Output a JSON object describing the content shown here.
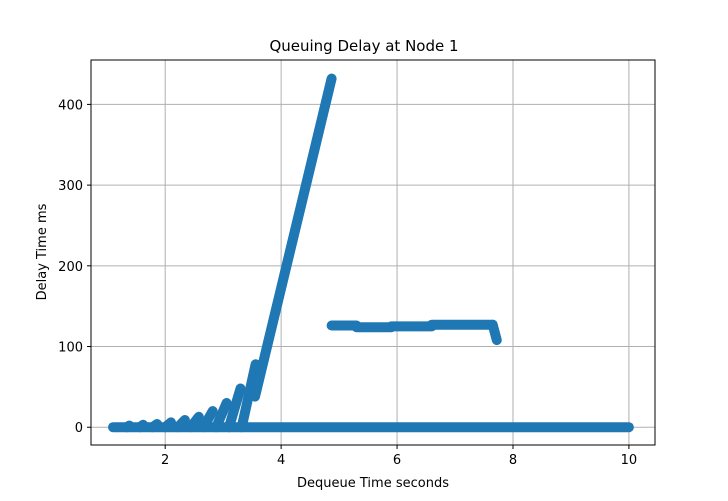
{
  "chart_data": {
    "type": "scatter",
    "title": "Queuing Delay at Node 1",
    "xlabel": "Dequeue Time seconds",
    "ylabel": "Delay Time ms",
    "xlim": [
      0.72,
      10.45
    ],
    "ylim": [
      -22,
      455
    ],
    "xticks": [
      2,
      4,
      6,
      8,
      10
    ],
    "yticks": [
      0,
      100,
      200,
      300,
      400
    ],
    "grid": true,
    "marker_color": "#1f77b4",
    "series": [
      {
        "name": "",
        "segments": [
          {
            "x": [
              1.1,
              10.0
            ],
            "y": [
              0,
              0
            ]
          },
          {
            "x": [
              1.33,
              1.38
            ],
            "y": [
              0,
              2
            ]
          },
          {
            "x": [
              1.56,
              1.62
            ],
            "y": [
              0,
              3
            ]
          },
          {
            "x": [
              1.78,
              1.86
            ],
            "y": [
              0,
              4
            ]
          },
          {
            "x": [
              2.0,
              2.1
            ],
            "y": [
              0,
              6
            ]
          },
          {
            "x": [
              2.22,
              2.34
            ],
            "y": [
              0,
              9
            ]
          },
          {
            "x": [
              2.44,
              2.58
            ],
            "y": [
              0,
              13
            ]
          },
          {
            "x": [
              2.66,
              2.82
            ],
            "y": [
              0,
              20
            ]
          },
          {
            "x": [
              2.88,
              3.06
            ],
            "y": [
              0,
              30
            ]
          },
          {
            "x": [
              3.1,
              3.3
            ],
            "y": [
              0,
              48
            ]
          },
          {
            "x": [
              3.32,
              3.56
            ],
            "y": [
              0,
              78
            ]
          },
          {
            "x": [
              3.55,
              4.87
            ],
            "y": [
              38,
              432
            ]
          },
          {
            "x": [
              4.87,
              5.3
            ],
            "y": [
              126,
              126
            ]
          },
          {
            "x": [
              5.3,
              5.9
            ],
            "y": [
              124,
              124
            ]
          },
          {
            "x": [
              5.9,
              6.6
            ],
            "y": [
              125,
              125
            ]
          },
          {
            "x": [
              6.6,
              7.65
            ],
            "y": [
              127,
              127
            ]
          },
          {
            "x": [
              7.65,
              7.72
            ],
            "y": [
              127,
              108
            ]
          }
        ]
      }
    ]
  }
}
